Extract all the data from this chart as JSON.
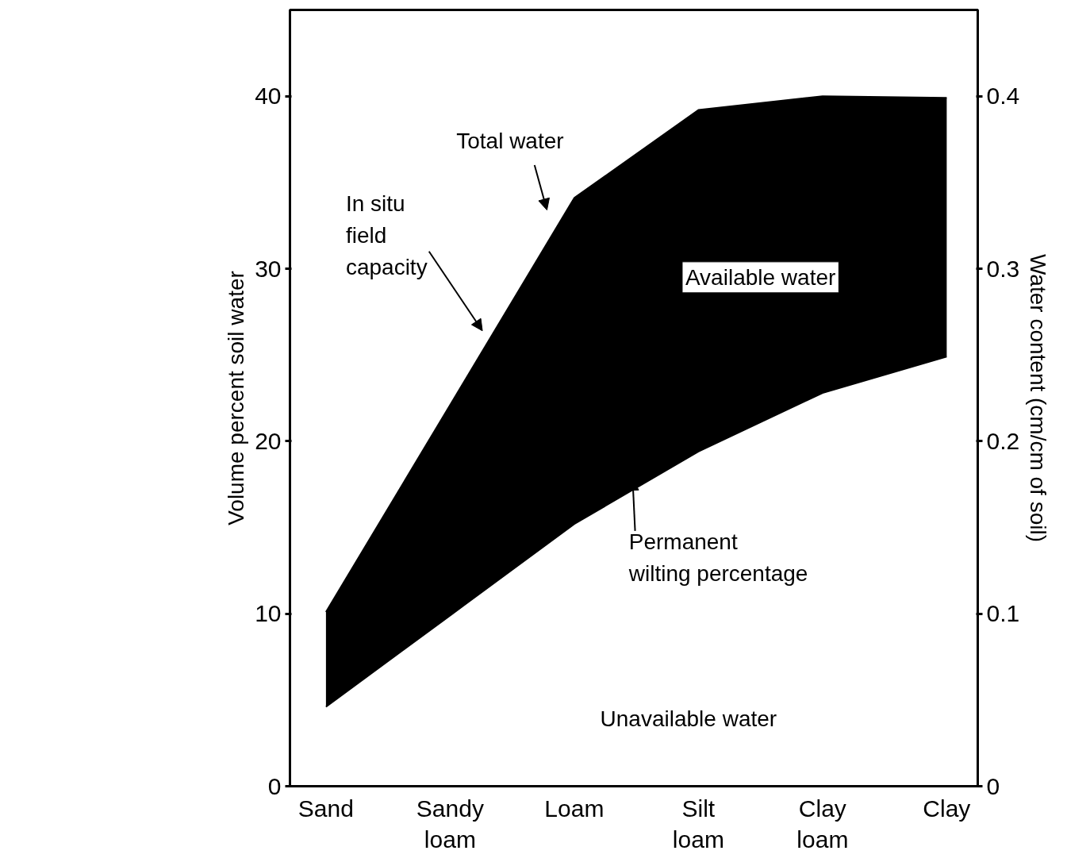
{
  "chart_data": {
    "type": "area",
    "stacked": true,
    "categories": [
      "Sand",
      "Sandy\nloam",
      "Loam",
      "Silt\nloam",
      "Clay\nloam",
      "Clay"
    ],
    "series": [
      {
        "color": "#ffffff",
        "values": [
          4.6,
          9.9,
          15.2,
          19.4,
          22.8,
          24.9
        ]
      },
      {
        "color": "#000000",
        "values": [
          5.5,
          12.2,
          18.9,
          19.8,
          17.2,
          15.0
        ]
      }
    ],
    "ylim": [
      0,
      45
    ],
    "yticks": [
      0,
      10,
      20,
      30,
      40
    ],
    "y2lim": [
      0,
      0.45
    ],
    "y2ticks": [
      0,
      0.1,
      0.2,
      0.3,
      0.4
    ],
    "ylabel": "Volume percent soil water",
    "y2label": "Water content (cm/cm of soil)",
    "annotations": [
      "Total water",
      "In situ\nfield\ncapacity",
      "Available water",
      "Permanent\nwilting percentage",
      "Unavailable water"
    ],
    "grid": false
  }
}
